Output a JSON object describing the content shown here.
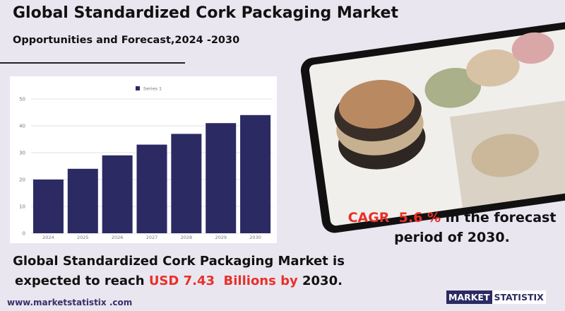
{
  "header": {
    "title": "Global Standardized Cork Packaging Market",
    "subtitle": "Opportunities and Forecast,2024 -2030"
  },
  "chart_data": {
    "type": "bar",
    "categories": [
      "2024",
      "2025",
      "2026",
      "2027",
      "2028",
      "2029",
      "2030"
    ],
    "series": [
      {
        "name": "Series 1",
        "color": "#2b2a63",
        "values": [
          20,
          24,
          29,
          33,
          37,
          41,
          44
        ]
      }
    ],
    "ylim": [
      0,
      50
    ],
    "yticks": [
      0,
      10,
      20,
      30,
      40,
      50
    ],
    "grid": true
  },
  "cagr": {
    "highlight": "CAGR  5.6 %",
    "text": " in the forecast period of 2030."
  },
  "statement": {
    "lead": "Global Standardized Cork Packaging Market is expected to reach ",
    "highlight": "USD 7.43  Billions by",
    "tail": " 2030."
  },
  "footer": {
    "website": "www.marketstatistix .com",
    "logo_left": "MARKET",
    "logo_right": "STATISTIX"
  }
}
